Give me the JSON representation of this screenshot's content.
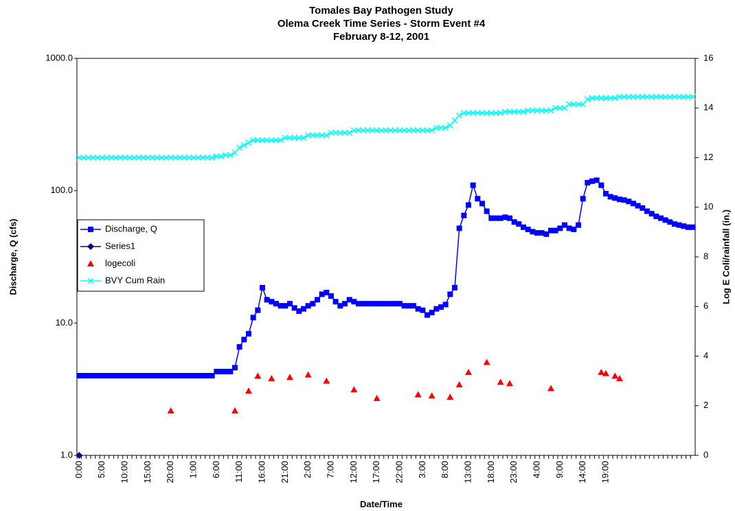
{
  "chart_data": {
    "type": "line",
    "title": [
      "Tomales Bay Pathogen Study",
      "Olema Creek Time Series - Storm Event #4",
      "February 8-12, 2001"
    ],
    "xlabel": "Date/Time",
    "ylabel": "Discharge, Q (cfs)",
    "y2label": "Log E Coli/rainfall (in.)",
    "yscale": "log",
    "legend": "left",
    "grid": false,
    "ylim": [
      1,
      1000
    ],
    "yticks": [
      {
        "value": 1,
        "label": "1.0"
      },
      {
        "value": 10,
        "label": "10.0"
      },
      {
        "value": 100,
        "label": "100.0"
      },
      {
        "value": 1000,
        "label": "1000.0"
      }
    ],
    "y2lim": [
      0,
      16
    ],
    "y2ticks": [
      0,
      2,
      4,
      6,
      8,
      10,
      12,
      14,
      16
    ],
    "categories": [
      "0:00",
      null,
      null,
      null,
      null,
      "5:00",
      null,
      null,
      null,
      null,
      "10:00",
      null,
      null,
      null,
      null,
      "15:00",
      null,
      null,
      null,
      null,
      "20:00",
      null,
      null,
      null,
      null,
      "1:00",
      null,
      null,
      null,
      null,
      "6:00",
      null,
      null,
      null,
      null,
      "11:00",
      null,
      null,
      null,
      null,
      "16:00",
      null,
      null,
      null,
      null,
      "21:00",
      null,
      null,
      null,
      null,
      "2:00",
      null,
      null,
      null,
      null,
      "7:00",
      null,
      null,
      null,
      null,
      "12:00",
      null,
      null,
      null,
      null,
      "17:00",
      null,
      null,
      null,
      null,
      "22:00",
      null,
      null,
      null,
      null,
      "3:00",
      null,
      null,
      null,
      null,
      "8:00",
      null,
      null,
      null,
      null,
      "13:00",
      null,
      null,
      null,
      null,
      "18:00",
      null,
      null,
      null,
      null,
      "23:00",
      null,
      null,
      null,
      null,
      "4:00",
      null,
      null,
      null,
      null,
      "9:00",
      null,
      null,
      null,
      null,
      "14:00",
      null,
      null,
      null,
      null,
      "19:00",
      null,
      null,
      null,
      null,
      null,
      null,
      null,
      null,
      null,
      null,
      null,
      null,
      null,
      null,
      null,
      null,
      null,
      null,
      null
    ],
    "series": [
      {
        "name": "Discharge, Q",
        "color": "#0000ff",
        "marker": "square",
        "line": true,
        "values": [
          4,
          4,
          4,
          4,
          4,
          4,
          4,
          4,
          4,
          4,
          4,
          4,
          4,
          4,
          4,
          4,
          4,
          4,
          4,
          4,
          4,
          4,
          4,
          4,
          4,
          4,
          4,
          4,
          4,
          4,
          4.3,
          4.3,
          4.3,
          4.3,
          4.6,
          6.6,
          7.5,
          8.3,
          11,
          12.5,
          18.5,
          15,
          14.5,
          14,
          13.5,
          13.5,
          14,
          13,
          12.3,
          12.8,
          13.5,
          14,
          15,
          16.5,
          17,
          16,
          14.5,
          13.5,
          14,
          15,
          14.5,
          14,
          14,
          14,
          14,
          14,
          14,
          14,
          14,
          14,
          14,
          13.5,
          13.5,
          13.5,
          12.8,
          12.5,
          11.5,
          12,
          12.8,
          13.2,
          13.8,
          16.5,
          18.5,
          52,
          65,
          78,
          110,
          87,
          80,
          70,
          62,
          62,
          62,
          63,
          62,
          58,
          56,
          53,
          51,
          49,
          48,
          48,
          47,
          50,
          50,
          52,
          55,
          52,
          51,
          55,
          87,
          115,
          118,
          120,
          110,
          95,
          90,
          88,
          86,
          85,
          83,
          80,
          77,
          74,
          70,
          67,
          64,
          62,
          60,
          58,
          56,
          55,
          54,
          53,
          53
        ]
      },
      {
        "name": "Series1",
        "color": "#000080",
        "marker": "diamond",
        "line": true,
        "axis": "y2",
        "values": [
          0,
          null,
          null,
          null,
          null,
          null,
          null,
          null,
          null,
          null,
          null,
          null,
          null,
          null,
          null,
          null,
          null,
          null,
          null,
          null,
          null,
          null,
          null,
          null,
          null,
          null,
          null,
          null,
          null,
          null,
          null,
          null,
          null,
          null,
          null,
          null,
          null,
          null,
          null,
          null,
          null,
          null,
          null,
          null,
          null,
          null,
          null,
          null,
          null,
          null,
          null,
          null,
          null,
          null,
          null,
          null,
          null,
          null,
          null,
          null,
          null,
          null,
          null,
          null,
          null,
          null,
          null,
          null,
          null,
          null,
          null,
          null,
          null,
          null,
          null,
          null,
          null,
          null,
          null,
          null,
          null,
          null,
          null,
          null,
          null,
          null,
          null,
          null,
          null,
          null,
          null,
          null,
          null,
          null,
          null,
          null,
          null,
          null,
          null,
          null,
          null,
          null,
          null,
          null,
          null,
          null,
          null,
          null,
          null,
          null,
          null,
          null,
          null,
          null,
          null,
          null,
          null,
          null,
          null,
          null,
          null,
          null,
          null,
          null,
          null,
          null,
          null,
          null,
          null,
          null,
          null,
          null,
          null,
          null,
          null
        ]
      },
      {
        "name": "logecoli",
        "color": "#ff0000",
        "marker": "triangle",
        "line": false,
        "axis": "y2",
        "values": [
          null,
          null,
          null,
          null,
          null,
          null,
          null,
          null,
          null,
          null,
          null,
          null,
          null,
          null,
          null,
          null,
          null,
          null,
          null,
          null,
          1.8,
          null,
          null,
          null,
          null,
          null,
          null,
          null,
          null,
          null,
          null,
          null,
          null,
          null,
          1.8,
          null,
          null,
          2.6,
          null,
          3.2,
          null,
          null,
          3.1,
          null,
          null,
          null,
          3.15,
          null,
          null,
          null,
          3.25,
          null,
          null,
          null,
          3.0,
          null,
          null,
          null,
          null,
          null,
          2.65,
          null,
          null,
          null,
          null,
          2.3,
          null,
          null,
          null,
          null,
          null,
          null,
          null,
          null,
          2.45,
          null,
          null,
          2.4,
          null,
          null,
          null,
          2.35,
          null,
          2.85,
          null,
          3.35,
          null,
          null,
          null,
          3.75,
          null,
          null,
          2.95,
          null,
          2.9,
          null,
          null,
          null,
          null,
          null,
          null,
          null,
          null,
          2.7,
          null,
          null,
          null,
          null,
          null,
          null,
          null,
          null,
          null,
          null,
          3.35,
          3.3,
          null,
          3.2,
          3.1,
          null,
          null,
          null,
          null,
          null,
          null,
          null,
          null,
          null,
          null,
          null,
          null,
          null,
          null,
          null,
          null
        ]
      },
      {
        "name": "BVY Cum Rain",
        "color": "#00ffff",
        "marker": "x",
        "line": true,
        "axis": "y2",
        "values": [
          12,
          12,
          12,
          12,
          12,
          12,
          12,
          12,
          12,
          12,
          12,
          12,
          12,
          12,
          12,
          12,
          12,
          12,
          12,
          12,
          12,
          12,
          12,
          12,
          12,
          12,
          12,
          12,
          12,
          12,
          12.05,
          12.05,
          12.1,
          12.1,
          12.2,
          12.4,
          12.5,
          12.6,
          12.7,
          12.7,
          12.7,
          12.7,
          12.7,
          12.7,
          12.7,
          12.8,
          12.8,
          12.8,
          12.8,
          12.8,
          12.9,
          12.9,
          12.9,
          12.9,
          12.9,
          13.0,
          13.0,
          13.0,
          13.0,
          13.0,
          13.1,
          13.1,
          13.1,
          13.1,
          13.1,
          13.1,
          13.1,
          13.1,
          13.1,
          13.1,
          13.1,
          13.1,
          13.1,
          13.1,
          13.1,
          13.1,
          13.1,
          13.1,
          13.2,
          13.2,
          13.2,
          13.3,
          13.5,
          13.7,
          13.8,
          13.8,
          13.8,
          13.8,
          13.8,
          13.8,
          13.8,
          13.8,
          13.8,
          13.85,
          13.85,
          13.85,
          13.85,
          13.85,
          13.9,
          13.9,
          13.9,
          13.9,
          13.9,
          13.9,
          14.0,
          14.0,
          14.0,
          14.15,
          14.15,
          14.15,
          14.15,
          14.35,
          14.4,
          14.4,
          14.4,
          14.4,
          14.4,
          14.4,
          14.45,
          14.45,
          14.45,
          14.45,
          14.45,
          14.45,
          14.45,
          14.45,
          14.45,
          14.45,
          14.45,
          14.45,
          14.45,
          14.45,
          14.45,
          14.45,
          14.45
        ]
      }
    ]
  }
}
